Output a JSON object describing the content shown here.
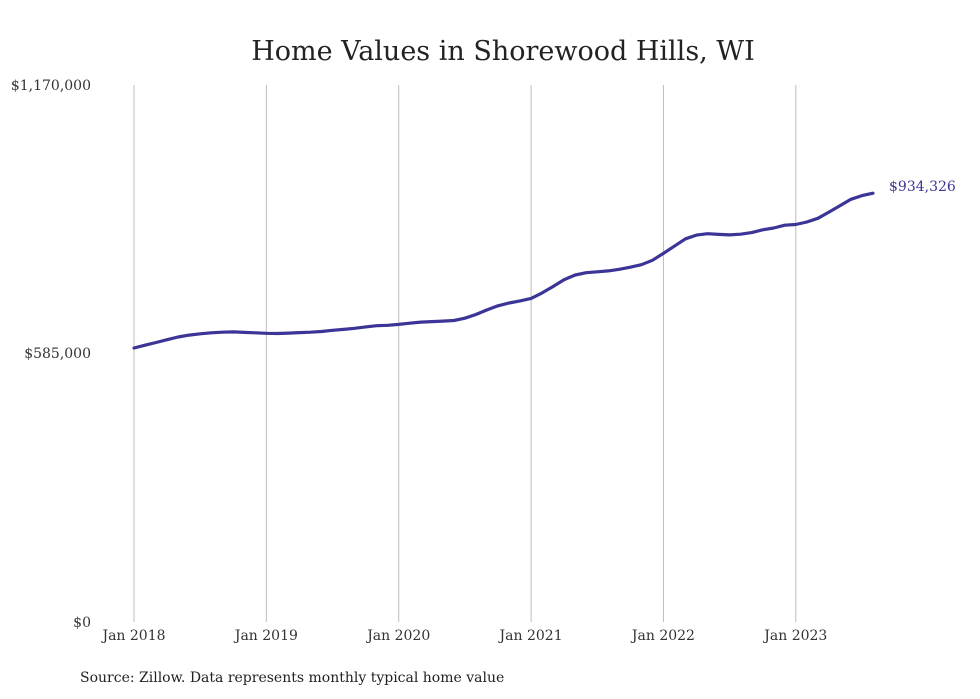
{
  "chart_data": {
    "type": "line",
    "title": "Home Values in Shorewood Hills, WI",
    "xlabel": "",
    "ylabel": "",
    "x_tick_labels": [
      "Jan 2018",
      "Jan 2019",
      "Jan 2020",
      "Jan 2021",
      "Jan 2022",
      "Jan 2023"
    ],
    "y_tick_labels": [
      "$1,170,000",
      "$585,000",
      "$0"
    ],
    "y_tick_values": [
      1170000,
      585000,
      0
    ],
    "ylim": [
      0,
      1170000
    ],
    "x_range": [
      "2018-01",
      "2023-08"
    ],
    "grid": "vertical lines at January of each year",
    "series": [
      {
        "color": "#3b3597",
        "x": [
          "2018-01",
          "2018-02",
          "2018-03",
          "2018-04",
          "2018-05",
          "2018-06",
          "2018-07",
          "2018-08",
          "2018-09",
          "2018-10",
          "2018-11",
          "2018-12",
          "2019-01",
          "2019-02",
          "2019-03",
          "2019-04",
          "2019-05",
          "2019-06",
          "2019-07",
          "2019-08",
          "2019-09",
          "2019-10",
          "2019-11",
          "2019-12",
          "2020-01",
          "2020-02",
          "2020-03",
          "2020-04",
          "2020-05",
          "2020-06",
          "2020-07",
          "2020-08",
          "2020-09",
          "2020-10",
          "2020-11",
          "2020-12",
          "2021-01",
          "2021-02",
          "2021-03",
          "2021-04",
          "2021-05",
          "2021-06",
          "2021-07",
          "2021-08",
          "2021-09",
          "2021-10",
          "2021-11",
          "2021-12",
          "2022-01",
          "2022-02",
          "2022-03",
          "2022-04",
          "2022-05",
          "2022-06",
          "2022-07",
          "2022-08",
          "2022-09",
          "2022-10",
          "2022-11",
          "2022-12",
          "2023-01",
          "2023-02",
          "2023-03",
          "2023-04",
          "2023-05",
          "2023-06",
          "2023-07",
          "2023-08"
        ],
        "values": [
          597000,
          603000,
          609000,
          615000,
          621000,
          625000,
          628000,
          630000,
          631500,
          632000,
          631000,
          630000,
          629000,
          628500,
          629500,
          630500,
          631500,
          633000,
          635500,
          637500,
          640000,
          643000,
          645500,
          646500,
          648500,
          651000,
          653500,
          654500,
          655500,
          657000,
          662000,
          670000,
          680000,
          689000,
          695000,
          699500,
          705000,
          717000,
          731000,
          746000,
          756000,
          761000,
          763000,
          765000,
          768500,
          773000,
          778500,
          788000,
          803000,
          819000,
          835000,
          843000,
          846000,
          844500,
          843500,
          845000,
          848500,
          854500,
          858500,
          864500,
          866000,
          871500,
          879500,
          893000,
          907000,
          921000,
          929000,
          934326
        ]
      }
    ],
    "end_label": "$934,326",
    "source_note": "Source: Zillow. Data represents monthly typical home value"
  }
}
